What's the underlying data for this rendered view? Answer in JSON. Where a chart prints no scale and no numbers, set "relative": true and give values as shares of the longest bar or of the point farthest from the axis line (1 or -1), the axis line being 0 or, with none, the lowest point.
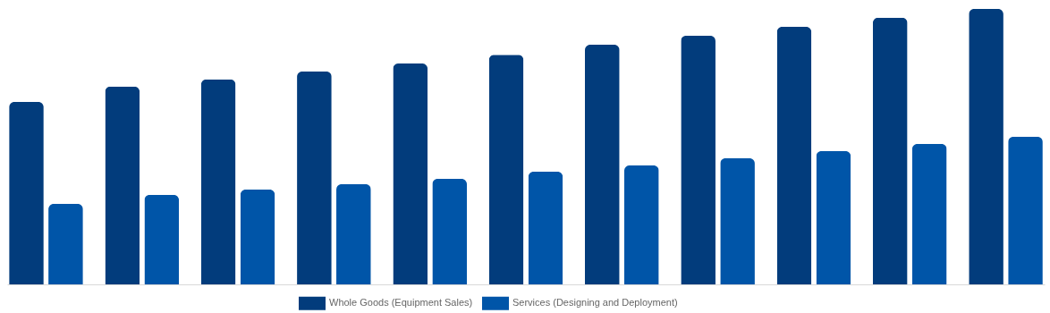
{
  "chart_data": {
    "type": "bar",
    "relative": true,
    "legend": "bottom",
    "categories": [
      null,
      null,
      null,
      null,
      null,
      null,
      null,
      null,
      null,
      null,
      null
    ],
    "series": [
      {
        "name": "Whole Goods (Equipment Sales)",
        "color": "#023c7c",
        "values": [
          0.662,
          0.718,
          0.744,
          0.773,
          0.802,
          0.834,
          0.87,
          0.903,
          0.935,
          0.968,
          1
        ]
      },
      {
        "name": "Services (Designing and Deployment)",
        "color": "#0055a8",
        "values": [
          0.292,
          0.325,
          0.344,
          0.364,
          0.383,
          0.409,
          0.432,
          0.458,
          0.484,
          0.51,
          0.536
        ]
      }
    ]
  }
}
